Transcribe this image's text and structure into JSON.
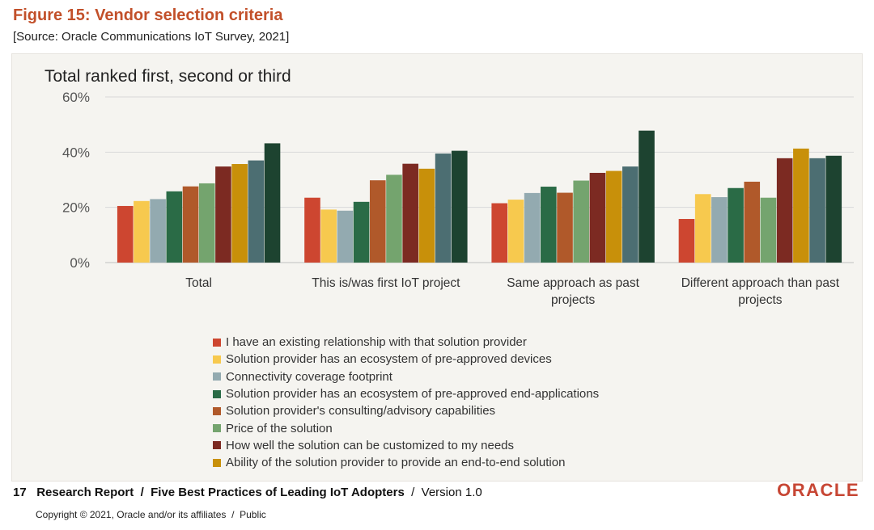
{
  "figure": {
    "title": "Figure 15: Vendor selection criteria",
    "source": "[Source: Oracle Communications IoT Survey, 2021]"
  },
  "chart_data": {
    "type": "bar",
    "title": "Total ranked first, second or third",
    "ylim": [
      0,
      60
    ],
    "yticks": [
      "0%",
      "20%",
      "40%",
      "60%"
    ],
    "grid": true,
    "legend_position": "bottom",
    "categories": [
      [
        "Total"
      ],
      [
        "This is/was first IoT project"
      ],
      [
        "Same approach as past",
        "projects"
      ],
      [
        "Different approach than past",
        "projects"
      ]
    ],
    "series": [
      {
        "name": "I have an existing relationship with that solution provider",
        "color": "#cd4630",
        "values": [
          20.5,
          23.5,
          21.5,
          15.8
        ]
      },
      {
        "name": "Solution provider has an ecosystem of pre-approved devices",
        "color": "#f7c94e",
        "values": [
          22.3,
          19.2,
          22.8,
          24.8
        ]
      },
      {
        "name": "Connectivity coverage footprint",
        "color": "#93aab0",
        "values": [
          23.0,
          18.8,
          25.2,
          23.7
        ]
      },
      {
        "name": "Solution provider has an ecosystem of pre-approved end-applications",
        "color": "#2a6b46",
        "values": [
          25.8,
          22.0,
          27.5,
          27.0
        ]
      },
      {
        "name": "Solution provider's consulting/advisory capabilities",
        "color": "#b0592a",
        "values": [
          27.6,
          29.8,
          25.3,
          29.3
        ]
      },
      {
        "name": "Price of the solution",
        "color": "#74a46e",
        "values": [
          28.7,
          31.8,
          29.7,
          23.5
        ]
      },
      {
        "name": "How well the solution can be customized to my needs",
        "color": "#7c2a22",
        "values": [
          34.8,
          35.8,
          32.5,
          37.8
        ]
      },
      {
        "name": "Ability of the solution provider to provide an end-to-end solution",
        "color": "#c8900a",
        "values": [
          35.7,
          34.0,
          33.2,
          41.3
        ]
      },
      {
        "name": "",
        "color": "#4c6e72",
        "values": [
          37.0,
          39.5,
          34.8,
          37.8
        ]
      },
      {
        "name": "",
        "color": "#1d4330",
        "values": [
          43.2,
          40.5,
          47.8,
          38.7
        ]
      }
    ]
  },
  "footer": {
    "page_number": "17",
    "report": "Research Report",
    "separator": "/",
    "doc_title": "Five Best Practices of Leading IoT Adopters",
    "version": "Version 1.0",
    "copyright": "Copyright © 2021, Oracle and/or its affiliates",
    "classification": "Public",
    "logo_text": "ORACLE"
  }
}
